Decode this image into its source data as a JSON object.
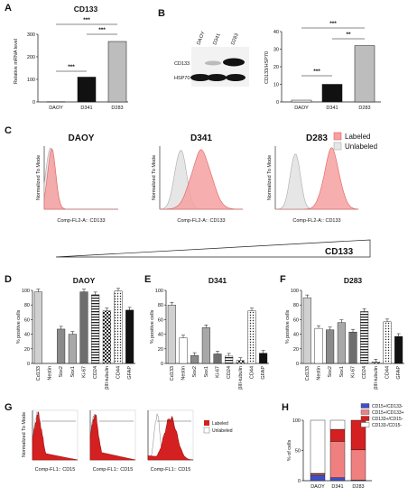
{
  "chart_data": [
    {
      "panel": "A",
      "type": "bar",
      "title": "CD133",
      "ylabel": "Relative mRNA level",
      "categories": [
        "DAOY",
        "D341",
        "D283"
      ],
      "values": [
        1,
        110,
        268
      ],
      "ylim": [
        0,
        300
      ],
      "yticks": [
        "0",
        "100",
        "200",
        "300"
      ],
      "colors": [
        "#111111",
        "#111111",
        "#bdbdbd"
      ],
      "significance": [
        "***",
        "***",
        "***"
      ]
    },
    {
      "panel": "B",
      "type": "bar",
      "ylabel": "CD133/HSP70",
      "categories": [
        "DAOY",
        "D341",
        "D283"
      ],
      "values": [
        1,
        10,
        32
      ],
      "ylim": [
        0,
        40
      ],
      "yticks": [
        "0",
        "10",
        "20",
        "30",
        "40"
      ],
      "colors": [
        "#ffffff",
        "#111111",
        "#bdbdbd"
      ],
      "significance": [
        "***",
        "***",
        "**"
      ],
      "blot_lanes": [
        "DAOY",
        "D341",
        "D283"
      ],
      "blot_rows": [
        "CD133",
        "HSP70"
      ]
    },
    {
      "panel": "C",
      "type": "area",
      "ylabel": "Normalized To Mode",
      "xlabel": "Comp-FL2-A:: CD133",
      "plots": [
        "DAOY",
        "D341",
        "D283"
      ],
      "legend": [
        "Labeled",
        "Unlabeled"
      ],
      "gradient_label": "CD133"
    },
    {
      "panel": "D",
      "type": "bar",
      "title": "DAOY",
      "ylabel": "% positive cells",
      "categories": [
        "Cd133",
        "Nestin",
        "Sox2",
        "Sox1",
        "Ki-67",
        "CD24",
        "βIII-tubulin",
        "CD44",
        "GFAP"
      ],
      "values": [
        98,
        0,
        47,
        40,
        98,
        94,
        72,
        99,
        73
      ],
      "ylim": [
        0,
        100
      ],
      "yticks": [
        "0",
        "20",
        "40",
        "60",
        "80",
        "100"
      ]
    },
    {
      "panel": "E",
      "type": "bar",
      "title": "D341",
      "ylabel": "% positive cells",
      "categories": [
        "Cd133",
        "Nestin",
        "Sox2",
        "Sox1",
        "Ki-67",
        "CD24",
        "βIII-tubulin",
        "CD44",
        "GFAP"
      ],
      "values": [
        80,
        35,
        11,
        49,
        13,
        10,
        4,
        72,
        14
      ],
      "ylim": [
        0,
        100
      ],
      "yticks": [
        "0",
        "20",
        "40",
        "60",
        "80",
        "100"
      ]
    },
    {
      "panel": "F",
      "type": "bar",
      "title": "D283",
      "ylabel": "% positive cells",
      "categories": [
        "Cd133",
        "Nestin",
        "Sox2",
        "Sox1",
        "Ki-67",
        "CD24",
        "βIII-tubulin",
        "CD44",
        "GFAP"
      ],
      "values": [
        90,
        48,
        46,
        56,
        43,
        71,
        2,
        57,
        37
      ],
      "ylim": [
        0,
        100
      ],
      "yticks": [
        "0",
        "20",
        "40",
        "60",
        "80",
        "100"
      ]
    },
    {
      "panel": "G",
      "type": "area",
      "ylabel": "Normalized To Mode",
      "xlabel": "Comp-FL1:: CD15",
      "plots": [
        "1",
        "2",
        "3"
      ],
      "legend": [
        "Labeled",
        "Unlabeled"
      ]
    },
    {
      "panel": "H",
      "type": "bar",
      "stacked": true,
      "ylabel": "% of cells",
      "categories": [
        "DAOY",
        "D341",
        "D283"
      ],
      "series": [
        {
          "name": "CD15+/CD133-",
          "color": "#3f4fc8",
          "values": [
            9,
            5,
            1
          ]
        },
        {
          "name": "CD15+/CD133+",
          "color": "#f08080",
          "values": [
            2,
            60,
            50
          ]
        },
        {
          "name": "CD133+/CD15-",
          "color": "#d42020",
          "values": [
            1,
            20,
            49
          ]
        },
        {
          "name": "CD133-/CD15-",
          "color": "#ffffff",
          "values": [
            88,
            15,
            0
          ]
        }
      ],
      "ylim": [
        0,
        100
      ],
      "yticks": [
        "0",
        "50",
        "100"
      ]
    }
  ],
  "labels": {
    "A": "A",
    "B": "B",
    "C": "C",
    "D": "D",
    "E": "E",
    "F": "F",
    "G": "G",
    "H": "H"
  },
  "colors": {
    "labeled": "#f06c6c",
    "labeled_fill": "#f6a0a0",
    "unlabeled": "#e6e6e6",
    "bar_dark": "#111111",
    "bar_grey": "#bdbdbd",
    "red": "#d42020",
    "blue": "#3f4fc8"
  }
}
